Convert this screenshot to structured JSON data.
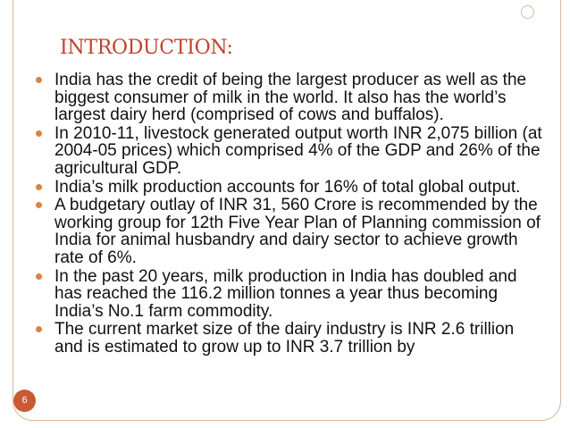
{
  "slide": {
    "title": "INTRODUCTION:",
    "page_number": "6",
    "bullets": [
      {
        "text": "India has the credit of being the largest producer as well as the biggest consumer of milk in the world. It also has the world’s largest dairy herd (comprised of cows and buffalos)."
      },
      {
        "text": "In 2010-11, livestock generated output worth INR 2,075 billion (at 2004-05 prices) which comprised 4% of the GDP and 26% of the agricultural GDP."
      },
      {
        "text": "India’s milk production accounts for 16% of total global output."
      },
      {
        "text": "A budgetary outlay of INR 31, 560 Crore is recommended by the working group for 12th Five Year Plan of Planning commission of India for animal husbandry and dairy sector to achieve growth rate of 6%."
      },
      {
        "text": "In the past 20 years, milk production in India has doubled and has reached the 116.2 million tonnes a year thus becoming India’s No.1 farm commodity."
      },
      {
        "text": "The current market size of the dairy industry is INR 2.6 trillion and is estimated to grow up to INR 3.7 trillion by"
      }
    ]
  },
  "colors": {
    "title": "#c0422c",
    "bullet": "#d9843f",
    "page_badge": "#c95a33",
    "frame": "#d8b89a"
  }
}
